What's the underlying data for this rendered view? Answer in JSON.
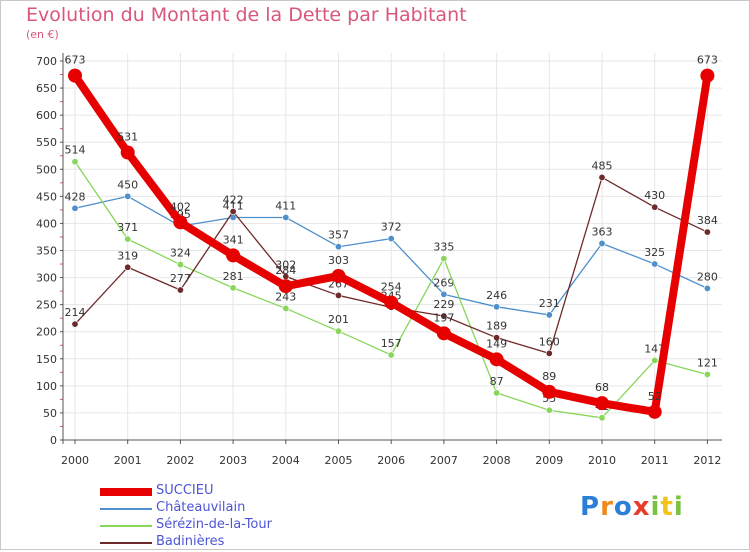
{
  "chart_data": {
    "type": "line",
    "title": "Evolution du Montant de la Dette par Habitant",
    "unit_label": "(en €)",
    "categories": [
      "2000",
      "2001",
      "2002",
      "2003",
      "2004",
      "2005",
      "2006",
      "2007",
      "2008",
      "2009",
      "2010",
      "2011",
      "2012"
    ],
    "ylim": [
      0,
      700
    ],
    "yticks": [
      0,
      50,
      100,
      150,
      200,
      250,
      300,
      350,
      400,
      450,
      500,
      550,
      600,
      650,
      700
    ],
    "grid": true,
    "legend_position": "bottom-left",
    "series": [
      {
        "name": "SUCCIEU",
        "color": "#e60000",
        "values": [
          673,
          531,
          402,
          341,
          284,
          303,
          254,
          197,
          149,
          89,
          68,
          52,
          673
        ]
      },
      {
        "name": "Châteauvilain",
        "color": "#4f8fcc",
        "values": [
          428,
          450,
          395,
          411,
          411,
          357,
          372,
          269,
          246,
          231,
          363,
          325,
          280
        ]
      },
      {
        "name": "Sérézin-de-la-Tour",
        "color": "#88d65a",
        "values": [
          514,
          371,
          324,
          281,
          243,
          201,
          157,
          335,
          87,
          55,
          41,
          147,
          121
        ]
      },
      {
        "name": "Badinières",
        "color": "#6e2a2a",
        "values": [
          214,
          319,
          277,
          422,
          302,
          267,
          245,
          229,
          189,
          160,
          485,
          430,
          384
        ]
      }
    ]
  },
  "logo": {
    "text": "Proxiti",
    "colors": [
      "#2b7fd6",
      "#f08a1c",
      "#2b7fd6",
      "#e83b2a",
      "#7bc142",
      "#f0c419",
      "#7bc142"
    ]
  }
}
